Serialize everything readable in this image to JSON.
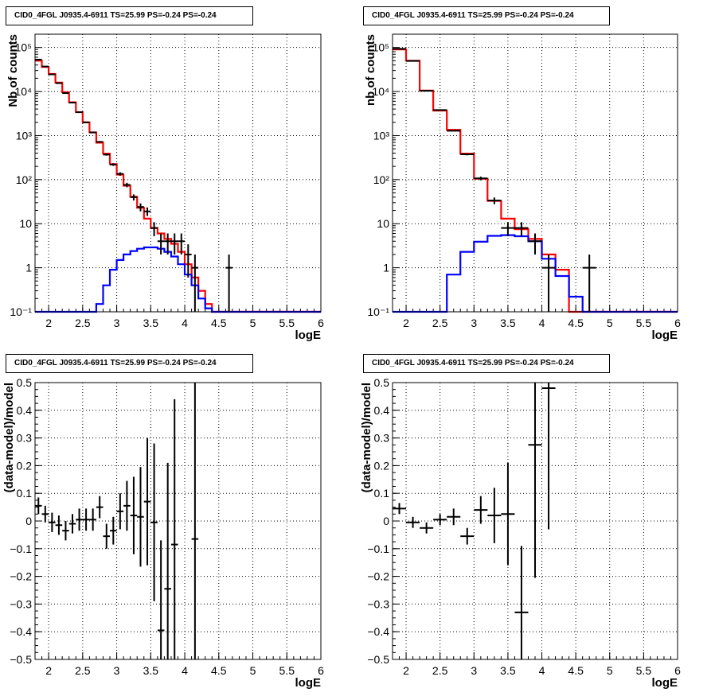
{
  "colors": {
    "data": "#000000",
    "total_model": "#ff0000",
    "source_model": "#0000ff",
    "grid": "#000000"
  },
  "chart_data": [
    {
      "type": "histogram",
      "title": "CID0_4FGL J0935.4-6911 TS=25.99 PS=-0.24 PS=-0.24",
      "xlabel": "logE",
      "ylabel": "Nb of counts",
      "xlim": [
        1.8,
        6.0
      ],
      "ylim": [
        0.1,
        200000
      ],
      "yscale": "log",
      "grid": true,
      "x_ticks": [
        2,
        2.5,
        3,
        3.5,
        4,
        4.5,
        5,
        5.5,
        6
      ],
      "x_tick_labels": [
        "2",
        "2.5",
        "3",
        "3.5",
        "4",
        "4.5",
        "5",
        "5.5",
        "6"
      ],
      "y_ticks": [
        0.1,
        1,
        10,
        100,
        1000,
        10000,
        100000
      ],
      "y_tick_labels": [
        "10⁻¹",
        "1",
        "10",
        "10²",
        "10³",
        "10⁴",
        "10⁵"
      ],
      "bin_edges": [
        1.8,
        1.9,
        2.0,
        2.1,
        2.2,
        2.3,
        2.4,
        2.5,
        2.6,
        2.7,
        2.8,
        2.9,
        3.0,
        3.1,
        3.2,
        3.3,
        3.4,
        3.5,
        3.6,
        3.7,
        3.8,
        3.9,
        4.0,
        4.1,
        4.2,
        4.3,
        4.4,
        4.5,
        4.6,
        4.7,
        4.8,
        4.9,
        5.0,
        5.1,
        5.2,
        5.3,
        5.4,
        5.5,
        5.6,
        5.7,
        5.8,
        5.9,
        6.0
      ],
      "series": [
        {
          "role": "total_model",
          "values": [
            50000,
            36000,
            25000,
            16000,
            9600,
            5700,
            3400,
            2000,
            1180,
            690,
            390,
            225,
            130,
            73,
            41,
            23,
            13,
            8,
            6,
            4.5,
            3.5,
            2.3,
            1.2,
            0.6,
            0.3,
            0.15,
            0.1,
            0.1,
            0.1,
            0.1,
            0.1,
            0.1,
            0.1,
            0.1,
            0.1,
            0.1,
            0.1,
            0.1,
            0.1,
            0.1,
            0.1,
            0.1
          ]
        },
        {
          "role": "source_model",
          "values": [
            0.1,
            0.1,
            0.1,
            0.1,
            0.1,
            0.1,
            0.1,
            0.1,
            0.1,
            0.15,
            0.4,
            0.9,
            1.5,
            2.0,
            2.4,
            2.7,
            2.9,
            2.9,
            2.7,
            2.3,
            1.8,
            1.2,
            0.7,
            0.4,
            0.2,
            0.12,
            0.1,
            0.1,
            0.1,
            0.1,
            0.1,
            0.1,
            0.1,
            0.1,
            0.1,
            0.1,
            0.1,
            0.1,
            0.1,
            0.1,
            0.1,
            0.1
          ]
        }
      ],
      "data_points": {
        "x": [
          1.85,
          1.95,
          2.05,
          2.15,
          2.25,
          2.35,
          2.45,
          2.55,
          2.65,
          2.75,
          2.85,
          2.95,
          3.05,
          3.15,
          3.25,
          3.35,
          3.45,
          3.55,
          3.65,
          3.75,
          3.85,
          3.95,
          4.05,
          4.15,
          4.65
        ],
        "y": [
          53000,
          37000,
          24500,
          15500,
          9200,
          5600,
          3400,
          2000,
          1180,
          720,
          370,
          220,
          135,
          76,
          40,
          24,
          19,
          8,
          4,
          4,
          4,
          4,
          2,
          1,
          1
        ],
        "err_low": [
          230,
          190,
          155,
          125,
          95,
          75,
          58,
          45,
          34,
          27,
          19,
          15,
          12,
          8.7,
          6.3,
          4.9,
          4.0,
          2.8,
          2.0,
          2.0,
          2.0,
          2.0,
          1.4,
          1.0,
          1.0
        ],
        "err_high": [
          230,
          190,
          155,
          125,
          95,
          75,
          58,
          45,
          34,
          27,
          19,
          15,
          12,
          8.7,
          6.3,
          4.9,
          4.4,
          2.8,
          2.0,
          2.0,
          2.0,
          2.0,
          1.4,
          1.0,
          1.0
        ]
      }
    },
    {
      "type": "histogram",
      "title": "CID0_4FGL J0935.4-6911 TS=25.99 PS=-0.24 PS=-0.24",
      "xlabel": "logE",
      "ylabel": "nb of counts",
      "xlim": [
        1.8,
        6.0
      ],
      "ylim": [
        0.1,
        200000
      ],
      "yscale": "log",
      "grid": true,
      "x_ticks": [
        2,
        2.5,
        3,
        3.5,
        4,
        4.5,
        5,
        5.5,
        6
      ],
      "x_tick_labels": [
        "2",
        "2.5",
        "3",
        "3.5",
        "4",
        "4.5",
        "5",
        "5.5",
        "6"
      ],
      "y_ticks": [
        0.1,
        1,
        10,
        100,
        1000,
        10000,
        100000
      ],
      "y_tick_labels": [
        "10⁻¹",
        "1",
        "10",
        "10²",
        "10³",
        "10⁴",
        "10⁵"
      ],
      "bin_edges": [
        1.8,
        2.0,
        2.2,
        2.4,
        2.6,
        2.8,
        3.0,
        3.2,
        3.4,
        3.6,
        3.8,
        4.0,
        4.2,
        4.4,
        4.6,
        4.8,
        5.0,
        5.2,
        5.4,
        5.6,
        5.8,
        6.0
      ],
      "series": [
        {
          "role": "total_model",
          "values": [
            90000,
            50000,
            10500,
            3700,
            1350,
            390,
            105,
            33,
            13,
            7.5,
            4.5,
            2.0,
            0.9,
            0.1,
            0.1,
            0.1,
            0.1,
            0.1,
            0.1,
            0.1,
            0.1
          ]
        },
        {
          "role": "source_model",
          "values": [
            0.1,
            0.1,
            0.1,
            0.1,
            0.7,
            2.3,
            3.9,
            5.3,
            5.5,
            5.2,
            4.0,
            1.6,
            0.65,
            0.22,
            0.1,
            0.1,
            0.1,
            0.1,
            0.1,
            0.1,
            0.1
          ]
        }
      ],
      "data_points": {
        "x": [
          1.9,
          2.1,
          2.3,
          2.5,
          2.7,
          2.9,
          3.1,
          3.3,
          3.5,
          3.7,
          3.9,
          4.1,
          4.7
        ],
        "y": [
          93000,
          49500,
          10400,
          3800,
          1290,
          375,
          107,
          33.5,
          8,
          8,
          4,
          1,
          1
        ],
        "err_low": [
          305,
          222,
          102,
          62,
          36,
          19,
          10,
          5.8,
          2.8,
          2.8,
          2.0,
          1.0,
          1.0
        ],
        "err_high": [
          305,
          222,
          102,
          62,
          36,
          19,
          10,
          5.8,
          2.8,
          2.8,
          2.0,
          1.0,
          1.0
        ]
      }
    },
    {
      "type": "scatter",
      "title": "CID0_4FGL J0935.4-6911 TS=25.99 PS=-0.24 PS=-0.24",
      "xlabel": "logE",
      "ylabel": "(data-model)/model",
      "xlim": [
        1.8,
        6.0
      ],
      "ylim": [
        -0.5,
        0.5
      ],
      "grid": true,
      "x_ticks": [
        2,
        2.5,
        3,
        3.5,
        4,
        4.5,
        5,
        5.5,
        6
      ],
      "x_tick_labels": [
        "2",
        "2.5",
        "3",
        "3.5",
        "4",
        "4.5",
        "5",
        "5.5",
        "6"
      ],
      "y_ticks": [
        -0.5,
        -0.4,
        -0.3,
        -0.2,
        -0.1,
        0,
        0.1,
        0.2,
        0.3,
        0.4,
        0.5
      ],
      "y_tick_labels": [
        "−0.5",
        "−0.4",
        "−0.3",
        "−0.2",
        "−0.1",
        "0",
        "0.1",
        "0.2",
        "0.3",
        "0.4",
        "0.5"
      ],
      "x_half_width": 0.05,
      "data_points": {
        "x": [
          1.85,
          1.95,
          2.05,
          2.15,
          2.25,
          2.35,
          2.45,
          2.55,
          2.65,
          2.75,
          2.85,
          2.95,
          3.05,
          3.15,
          3.25,
          3.35,
          3.45,
          3.55,
          3.65,
          3.75,
          3.85,
          4.15
        ],
        "y": [
          0.055,
          0.025,
          -0.005,
          -0.015,
          -0.035,
          -0.01,
          0.005,
          0.005,
          0.005,
          0.05,
          -0.055,
          -0.035,
          0.035,
          0.055,
          0.02,
          0.015,
          0.07,
          -0.005,
          -0.395,
          -0.245,
          -0.085,
          -0.065
        ],
        "err_low": [
          0.03,
          0.03,
          0.035,
          0.035,
          0.035,
          0.035,
          0.04,
          0.04,
          0.04,
          0.04,
          0.045,
          0.05,
          0.065,
          0.09,
          0.14,
          0.18,
          0.23,
          0.285,
          0.105,
          0.255,
          0.415,
          0.435
        ],
        "err_high": [
          0.03,
          0.03,
          0.035,
          0.035,
          0.035,
          0.035,
          0.04,
          0.04,
          0.04,
          0.04,
          0.045,
          0.05,
          0.065,
          0.09,
          0.14,
          0.18,
          0.23,
          0.285,
          0.325,
          0.455,
          0.525,
          0.565
        ]
      }
    },
    {
      "type": "scatter",
      "title": "CID0_4FGL J0935.4-6911 TS=25.99 PS=-0.24 PS=-0.24",
      "xlabel": "logE",
      "ylabel": "(data-model)/model",
      "xlim": [
        1.8,
        6.0
      ],
      "ylim": [
        -0.5,
        0.5
      ],
      "grid": true,
      "x_ticks": [
        2,
        2.5,
        3,
        3.5,
        4,
        4.5,
        5,
        5.5,
        6
      ],
      "x_tick_labels": [
        "2",
        "2.5",
        "3",
        "3.5",
        "4",
        "4.5",
        "5",
        "5.5",
        "6"
      ],
      "y_ticks": [
        -0.5,
        -0.4,
        -0.3,
        -0.2,
        -0.1,
        0,
        0.1,
        0.2,
        0.3,
        0.4,
        0.5
      ],
      "y_tick_labels": [
        "−0.5",
        "−0.4",
        "−0.3",
        "−0.2",
        "−0.1",
        "0",
        "0.1",
        "0.2",
        "0.3",
        "0.4",
        "0.5"
      ],
      "x_half_width": 0.1,
      "data_points": {
        "x": [
          1.9,
          2.1,
          2.3,
          2.5,
          2.7,
          2.9,
          3.1,
          3.3,
          3.5,
          3.7,
          3.9,
          4.1
        ],
        "y": [
          0.045,
          -0.005,
          -0.025,
          0.005,
          0.015,
          -0.055,
          0.04,
          0.02,
          0.025,
          -0.33,
          0.275,
          0.48
        ],
        "err_low": [
          0.02,
          0.02,
          0.02,
          0.02,
          0.03,
          0.03,
          0.05,
          0.1,
          0.185,
          0.24,
          0.48,
          0.51
        ],
        "err_high": [
          0.02,
          0.02,
          0.02,
          0.02,
          0.03,
          0.03,
          0.05,
          0.1,
          0.185,
          0.24,
          0.48,
          0.51
        ]
      }
    }
  ]
}
